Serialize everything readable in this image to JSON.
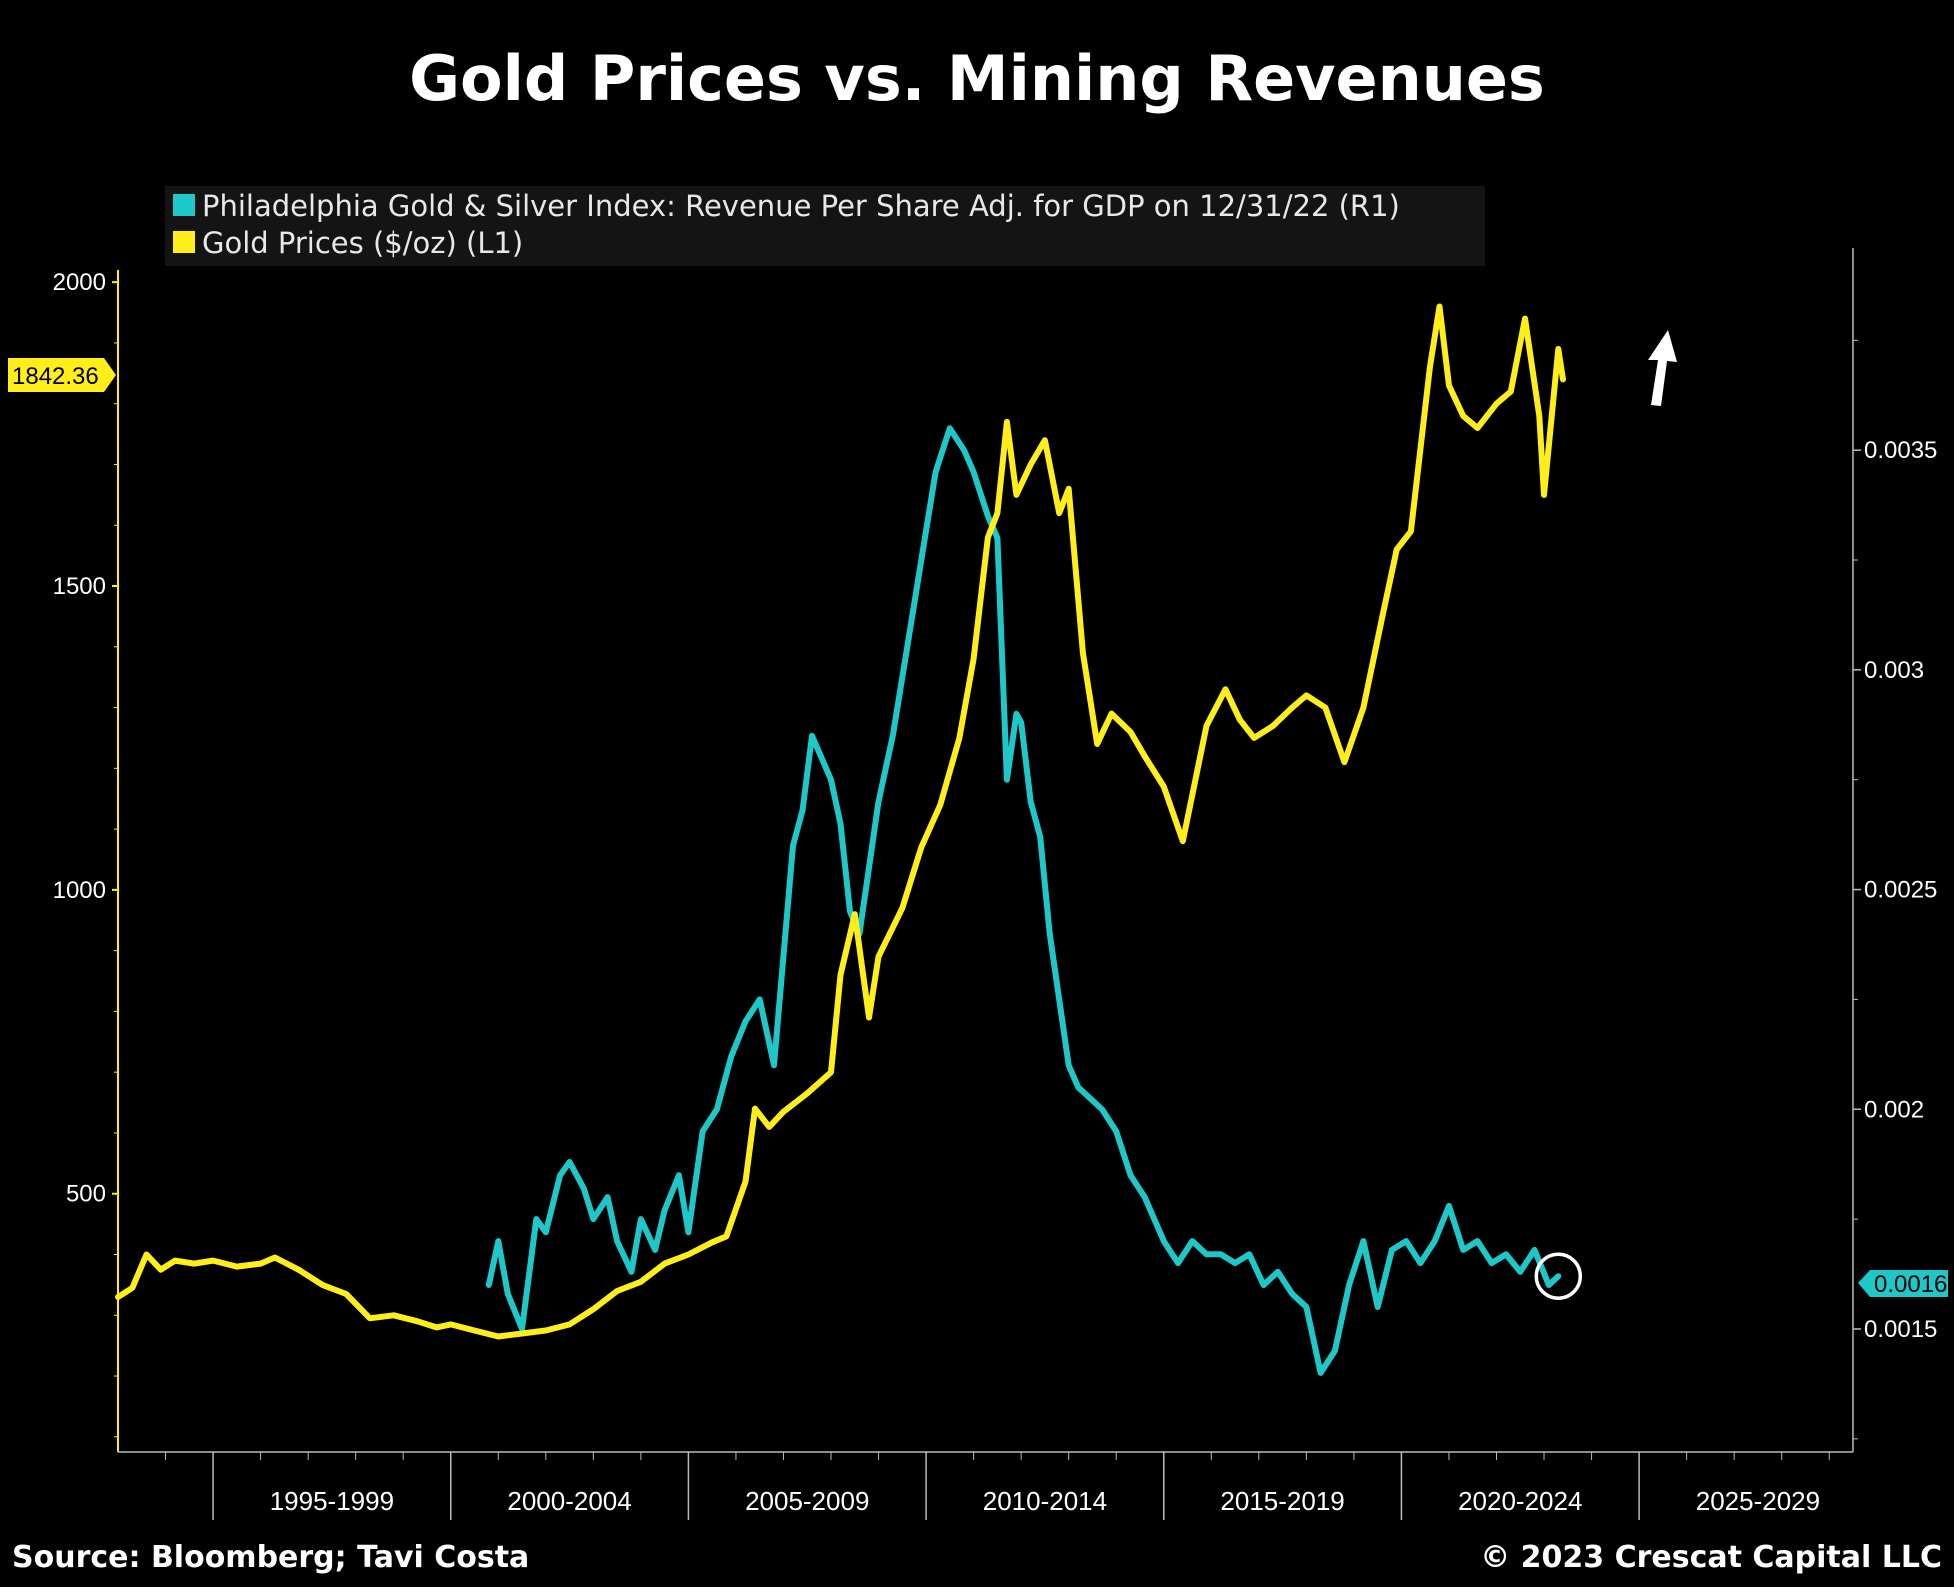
{
  "chart_data": {
    "type": "line",
    "title": "Gold Prices vs. Mining Revenues",
    "legend": [
      {
        "label": "Philadelphia Gold & Silver Index: Revenue Per Share Adj. for GDP on 12/31/22 (R1)",
        "color": "#1ec8c8"
      },
      {
        "label": "Gold Prices ($/oz) (L1)",
        "color": "#ffee1a"
      }
    ],
    "legend_position": "top-left",
    "left_axis": {
      "ticks": [
        {
          "v": 2000,
          "label": "2000"
        },
        {
          "v": 1500,
          "label": "1500"
        },
        {
          "v": 1000,
          "label": "1000"
        },
        {
          "v": 500,
          "label": "500"
        }
      ],
      "range": [
        75,
        2020
      ]
    },
    "right_axis": {
      "ticks": [
        {
          "v": 0.0035,
          "label": "0.0035"
        },
        {
          "v": 0.003,
          "label": "0.003"
        },
        {
          "v": 0.0025,
          "label": "0.0025"
        },
        {
          "v": 0.002,
          "label": "0.002"
        },
        {
          "v": 0.0015,
          "label": "0.0015"
        }
      ],
      "range": [
        0.00122,
        0.00391
      ]
    },
    "x_axis": {
      "range": [
        1993.0,
        2029.5
      ],
      "categories": [
        "1995-1999",
        "2000-2004",
        "2005-2009",
        "2010-2014",
        "2015-2019",
        "2020-2024",
        "2025-2029"
      ]
    },
    "grid": false,
    "last_value_left": {
      "label": "1842.36",
      "value": 1842.36,
      "color": "#ffee1a"
    },
    "last_value_right": {
      "label": "0.0016",
      "value": 0.0016,
      "color": "#1ec8c8"
    },
    "series": [
      {
        "name": "Gold Prices ($/oz) (L1)",
        "axis": "left",
        "color": "#ffee1a",
        "x": [
          1993.0,
          1993.3,
          1993.6,
          1993.9,
          1994.2,
          1994.6,
          1995.0,
          1995.5,
          1996.0,
          1996.3,
          1996.8,
          1997.3,
          1997.8,
          1998.3,
          1998.8,
          1999.3,
          1999.7,
          2000.0,
          2000.5,
          2001.0,
          2001.5,
          2002.0,
          2002.5,
          2003.0,
          2003.5,
          2004.0,
          2004.5,
          2005.0,
          2005.5,
          2005.8,
          2006.2,
          2006.4,
          2006.7,
          2007.0,
          2007.5,
          2008.0,
          2008.2,
          2008.5,
          2008.8,
          2009.0,
          2009.5,
          2009.9,
          2010.3,
          2010.7,
          2011.0,
          2011.3,
          2011.5,
          2011.7,
          2011.9,
          2012.2,
          2012.5,
          2012.8,
          2013.0,
          2013.3,
          2013.6,
          2013.9,
          2014.3,
          2014.6,
          2015.0,
          2015.4,
          2015.9,
          2016.3,
          2016.6,
          2016.9,
          2017.3,
          2017.7,
          2018.0,
          2018.4,
          2018.8,
          2019.2,
          2019.6,
          2019.9,
          2020.2,
          2020.6,
          2020.8,
          2021.0,
          2021.3,
          2021.6,
          2022.0,
          2022.3,
          2022.6,
          2022.9,
          2023.0,
          2023.3,
          2023.4
        ],
        "y": [
          330,
          345,
          400,
          375,
          390,
          385,
          390,
          380,
          385,
          395,
          375,
          350,
          335,
          295,
          300,
          290,
          280,
          285,
          275,
          265,
          270,
          275,
          285,
          310,
          340,
          355,
          385,
          400,
          420,
          430,
          520,
          640,
          610,
          635,
          665,
          700,
          860,
          960,
          790,
          890,
          970,
          1070,
          1140,
          1250,
          1380,
          1580,
          1620,
          1770,
          1650,
          1700,
          1740,
          1620,
          1660,
          1390,
          1240,
          1290,
          1260,
          1220,
          1170,
          1080,
          1270,
          1330,
          1280,
          1250,
          1270,
          1300,
          1320,
          1300,
          1210,
          1300,
          1450,
          1560,
          1590,
          1860,
          1960,
          1830,
          1780,
          1760,
          1800,
          1820,
          1940,
          1780,
          1650,
          1890,
          1840
        ]
      },
      {
        "name": "Philadelphia Gold & Silver Index: Revenue Per Share Adj. for GDP on 12/31/22 (R1)",
        "axis": "right",
        "color": "#1ec8c8",
        "x": [
          2000.8,
          2001.0,
          2001.2,
          2001.5,
          2001.8,
          2002.0,
          2002.3,
          2002.5,
          2002.8,
          2003.0,
          2003.3,
          2003.5,
          2003.8,
          2004.0,
          2004.3,
          2004.5,
          2004.8,
          2005.0,
          2005.3,
          2005.6,
          2005.9,
          2006.2,
          2006.5,
          2006.8,
          2007.0,
          2007.2,
          2007.4,
          2007.6,
          2007.8,
          2008.0,
          2008.2,
          2008.4,
          2008.6,
          2008.8,
          2009.0,
          2009.3,
          2009.6,
          2009.9,
          2010.2,
          2010.5,
          2010.8,
          2011.0,
          2011.3,
          2011.5,
          2011.7,
          2011.9,
          2012.0,
          2012.2,
          2012.4,
          2012.6,
          2012.8,
          2013.0,
          2013.2,
          2013.4,
          2013.7,
          2014.0,
          2014.3,
          2014.6,
          2015.0,
          2015.3,
          2015.6,
          2015.9,
          2016.2,
          2016.5,
          2016.8,
          2017.1,
          2017.4,
          2017.7,
          2018.0,
          2018.3,
          2018.6,
          2018.9,
          2019.2,
          2019.5,
          2019.8,
          2020.1,
          2020.4,
          2020.7,
          2021.0,
          2021.3,
          2021.6,
          2021.9,
          2022.2,
          2022.5,
          2022.8,
          2023.1,
          2023.3
        ],
        "y": [
          0.0016,
          0.0017,
          0.00158,
          0.0015,
          0.00175,
          0.00172,
          0.00185,
          0.00188,
          0.00182,
          0.00175,
          0.0018,
          0.0017,
          0.00163,
          0.00175,
          0.00168,
          0.00177,
          0.00185,
          0.00172,
          0.00195,
          0.002,
          0.00212,
          0.0022,
          0.00225,
          0.0021,
          0.00235,
          0.0026,
          0.00268,
          0.00285,
          0.0028,
          0.00275,
          0.00265,
          0.00245,
          0.0024,
          0.00255,
          0.0027,
          0.00285,
          0.00305,
          0.00325,
          0.00345,
          0.00355,
          0.0035,
          0.00345,
          0.00335,
          0.0033,
          0.00275,
          0.0029,
          0.00288,
          0.0027,
          0.00262,
          0.0024,
          0.00225,
          0.0021,
          0.00205,
          0.00203,
          0.002,
          0.00195,
          0.00185,
          0.0018,
          0.0017,
          0.00165,
          0.0017,
          0.00167,
          0.00167,
          0.00165,
          0.00167,
          0.0016,
          0.00163,
          0.00158,
          0.00155,
          0.0014,
          0.00145,
          0.0016,
          0.0017,
          0.00155,
          0.00168,
          0.0017,
          0.00165,
          0.0017,
          0.00178,
          0.00168,
          0.0017,
          0.00165,
          0.00167,
          0.00163,
          0.00168,
          0.0016,
          0.00162
        ]
      }
    ],
    "annotations": [
      {
        "type": "arrow",
        "direction": "up",
        "color": "#ffffff"
      },
      {
        "type": "circle",
        "x": 2023.3,
        "axis": "right",
        "y": 0.00162,
        "color": "#ffffff"
      }
    ]
  },
  "footer": {
    "source": "Source: Bloomberg; Tavi Costa",
    "copyright": "© 2023 Crescat Capital LLC"
  }
}
